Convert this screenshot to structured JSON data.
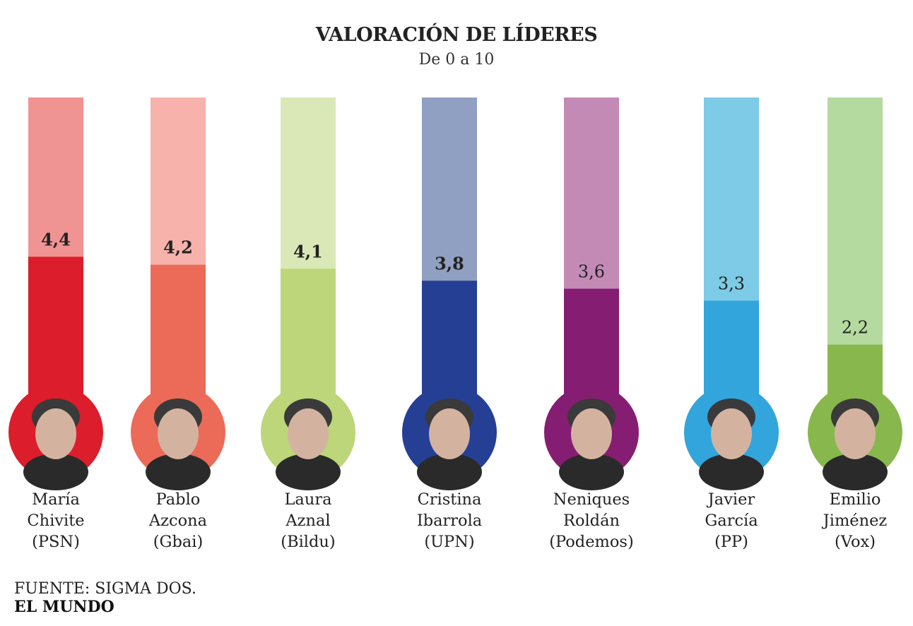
{
  "title": "VALORACIÓN DE LÍDERES",
  "subtitle": "De 0 a 10",
  "source": "FUENTE: SIGMA DOS.",
  "brand": "EL MUNDO",
  "chart_data": {
    "type": "bar",
    "title": "VALORACIÓN DE LÍDERES",
    "subtitle": "De 0 a 10",
    "ylim": [
      0,
      10
    ],
    "categories": [
      "María Chivite (PSN)",
      "Pablo Azcona (Gbai)",
      "Laura Aznal (Bildu)",
      "Cristina Ibarrola (UPN)",
      "Neniques Roldán (Podemos)",
      "Javier García (PP)",
      "Emilio Jiménez (Vox)"
    ],
    "values": [
      4.4,
      4.2,
      4.1,
      3.8,
      3.6,
      3.3,
      2.2
    ],
    "value_labels": [
      "4,4",
      "4,2",
      "4,1",
      "3,8",
      "3,6",
      "3,3",
      "2,2"
    ],
    "leaders": [
      {
        "first": "María",
        "last": "Chivite",
        "party": "(PSN)",
        "value": 4.4,
        "label": "4,4",
        "color": "#DC1D2B",
        "track": "#F09393",
        "bold": true
      },
      {
        "first": "Pablo",
        "last": "Azcona",
        "party": "(Gbai)",
        "value": 4.2,
        "label": "4,2",
        "color": "#EC6A58",
        "track": "#F6B2AB",
        "bold": true
      },
      {
        "first": "Laura",
        "last": "Aznal",
        "party": "(Bildu)",
        "value": 4.1,
        "label": "4,1",
        "color": "#BCD679",
        "track": "#D9E8B6",
        "bold": true
      },
      {
        "first": "Cristina",
        "last": "Ibarrola",
        "party": "(UPN)",
        "value": 3.8,
        "label": "3,8",
        "color": "#253F95",
        "track": "#90A0C2",
        "bold": true
      },
      {
        "first": "Neniques",
        "last": "Roldán",
        "party": "(Podemos)",
        "value": 3.6,
        "label": "3,6",
        "color": "#851E73",
        "track": "#C48AB6",
        "bold": false
      },
      {
        "first": "Javier",
        "last": "García",
        "party": "(PP)",
        "value": 3.3,
        "label": "3,3",
        "color": "#31A5DC",
        "track": "#7DCBE6",
        "bold": false
      },
      {
        "first": "Emilio",
        "last": "Jiménez",
        "party": "(Vox)",
        "value": 2.2,
        "label": "2,2",
        "color": "#88B84D",
        "track": "#B5DAA0",
        "bold": false
      }
    ]
  }
}
